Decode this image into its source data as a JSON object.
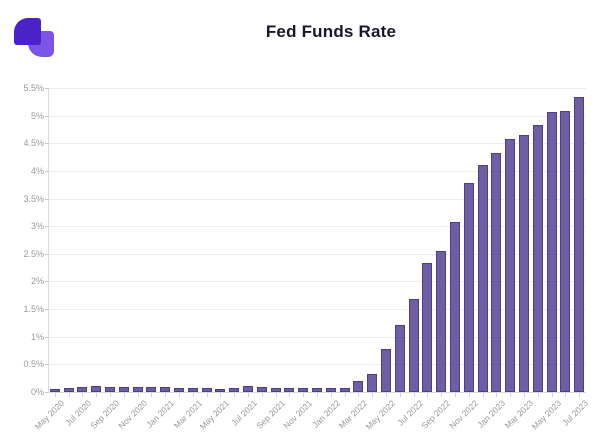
{
  "header": {
    "title": "Fed Funds Rate"
  },
  "logo": {
    "name": "brand-logo",
    "dark_color": "#4a22c8",
    "light_color": "#7c54e8"
  },
  "chart_data": {
    "type": "bar",
    "title": "Fed Funds Rate",
    "x": [
      "May 2020",
      "Jun 2020",
      "Jul 2020",
      "Aug 2020",
      "Sep 2020",
      "Oct 2020",
      "Nov 2020",
      "Dec 2020",
      "Jan 2021",
      "Feb 2021",
      "Mar 2021",
      "Apr 2021",
      "May 2021",
      "Jun 2021",
      "Jul 2021",
      "Aug 2021",
      "Sep 2021",
      "Oct 2021",
      "Nov 2021",
      "Dec 2021",
      "Jan 2022",
      "Feb 2022",
      "Mar 2022",
      "Apr 2022",
      "May 2022",
      "Jun 2022",
      "Jul 2022",
      "Aug 2022",
      "Sep 2022",
      "Oct 2022",
      "Nov 2022",
      "Dec 2022",
      "Jan 2023",
      "Feb 2023",
      "Mar 2023",
      "Apr 2023",
      "May 2023",
      "Jun 2023",
      "Jul 2023"
    ],
    "values": [
      0.05,
      0.08,
      0.09,
      0.1,
      0.09,
      0.09,
      0.09,
      0.09,
      0.09,
      0.08,
      0.07,
      0.07,
      0.06,
      0.08,
      0.1,
      0.09,
      0.08,
      0.08,
      0.08,
      0.08,
      0.08,
      0.08,
      0.2,
      0.33,
      0.77,
      1.21,
      1.68,
      2.33,
      2.56,
      3.08,
      3.78,
      4.1,
      4.33,
      4.57,
      4.65,
      4.83,
      5.06,
      5.08,
      5.33
    ],
    "xtick_labels": [
      "May 2020",
      "Jul 2020",
      "Sep 2020",
      "Nov 2020",
      "Jan 2021",
      "Mar 2021",
      "May 2021",
      "Jul 2021",
      "Sep 2021",
      "Nov 2021",
      "Jan 2022",
      "Mar 2022",
      "May 2022",
      "Jul 2022",
      "Sep 2022",
      "Nov 2022",
      "Jan 2023",
      "Mar 2023",
      "May 2023",
      "Jul 2023"
    ],
    "label_every": 2,
    "yticks": [
      0,
      0.5,
      1,
      1.5,
      2,
      2.5,
      3,
      3.5,
      4,
      4.5,
      5,
      5.5
    ],
    "ytick_labels": [
      "0%",
      "0.5%",
      "1%",
      "1.5%",
      "2%",
      "2.5%",
      "3%",
      "3.5%",
      "4%",
      "4.5%",
      "5%",
      "5.5%"
    ],
    "ylim": [
      0,
      5.5
    ],
    "xlabel": "",
    "ylabel": "",
    "grid": true,
    "legend": "none",
    "bar_color": "#6e5fa5",
    "bar_border_color": "#4e3e85",
    "gridline_color": "#ececf0",
    "axis_color": "#d9d9df",
    "tick_label_color": "#9a9a9f",
    "title_color": "#18182b"
  }
}
